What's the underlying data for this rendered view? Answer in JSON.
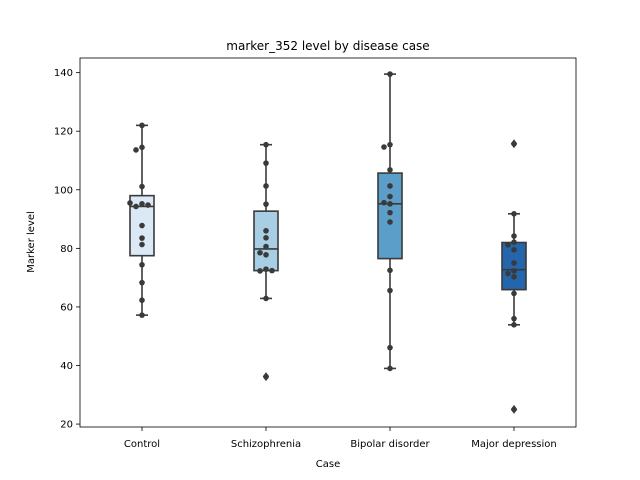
{
  "chart_data": {
    "type": "box",
    "title": "marker_352 level by disease case",
    "xlabel": "Case",
    "ylabel": "Marker level",
    "ylim": [
      19,
      145
    ],
    "yticks": [
      20,
      40,
      60,
      80,
      100,
      120,
      140
    ],
    "categories": [
      "Control",
      "Schizophrenia",
      "Bipolar disorder",
      "Major depression"
    ],
    "colors": [
      "#dbe9f6",
      "#a8cee4",
      "#5b9ec9",
      "#2366ac"
    ],
    "boxes": [
      {
        "q1": 77.5,
        "median": 94.3,
        "q3": 98.0,
        "whisker_low": 57.2,
        "whisker_high": 122.0,
        "outliers": []
      },
      {
        "q1": 72.4,
        "median": 79.8,
        "q3": 92.7,
        "whisker_low": 62.9,
        "whisker_high": 115.4,
        "outliers": [
          36.2
        ]
      },
      {
        "q1": 76.5,
        "median": 95.2,
        "q3": 105.7,
        "whisker_low": 39.0,
        "whisker_high": 139.5,
        "outliers": []
      },
      {
        "q1": 65.9,
        "median": 72.7,
        "q3": 82.0,
        "whisker_low": 53.9,
        "whisker_high": 91.8,
        "outliers": [
          115.7,
          25.0
        ]
      }
    ],
    "points": [
      [
        122.0,
        114.5,
        113.6,
        101.1,
        95.2,
        94.3,
        94.8,
        95.5,
        87.8,
        83.5,
        81.3,
        74.4,
        68.3,
        62.3,
        57.2
      ],
      [
        115.4,
        109.1,
        101.3,
        95.1,
        86.0,
        83.6,
        80.6,
        77.8,
        78.5,
        72.9,
        72.3,
        72.4,
        62.9,
        36.2
      ],
      [
        139.5,
        115.4,
        114.6,
        106.8,
        101.3,
        97.7,
        95.2,
        95.6,
        92.2,
        89.0,
        72.5,
        65.6,
        46.1,
        39.0
      ],
      [
        115.7,
        91.8,
        84.2,
        82.1,
        81.2,
        79.5,
        75.0,
        72.3,
        71.4,
        70.3,
        64.6,
        56.0,
        53.9,
        25.0
      ]
    ]
  }
}
